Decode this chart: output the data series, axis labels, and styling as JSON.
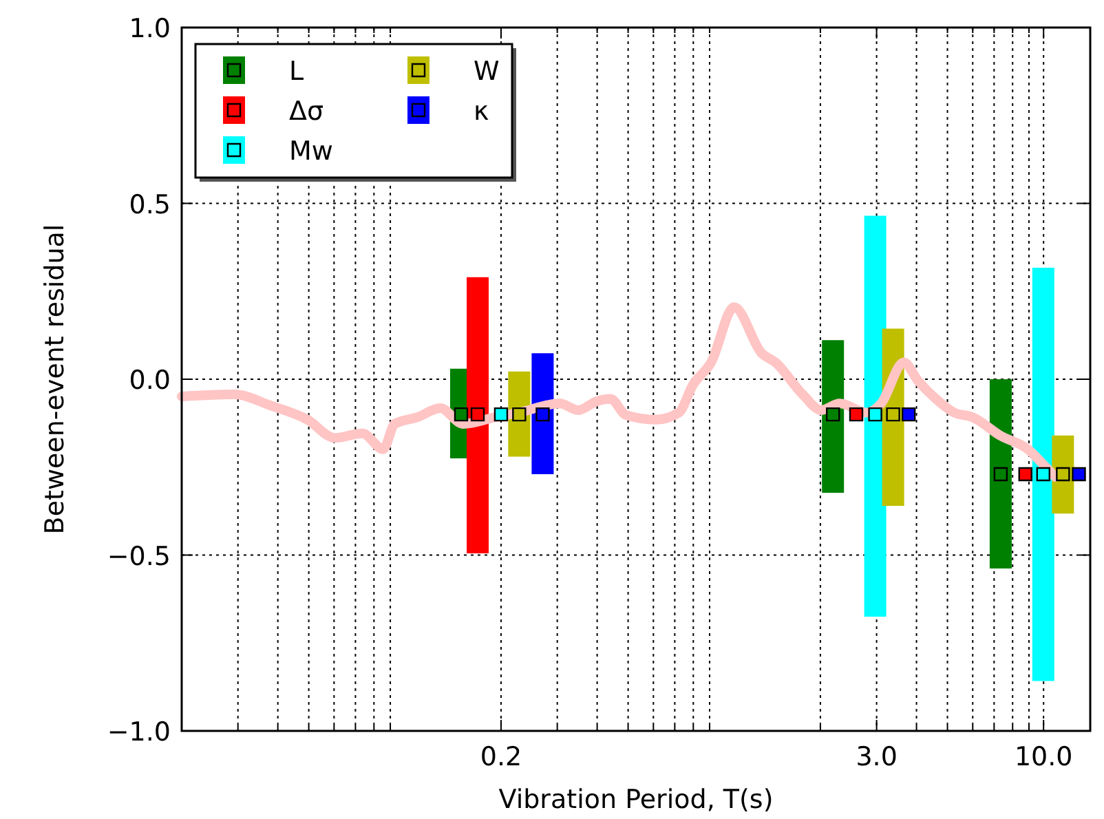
{
  "chart_data": {
    "type": "scatter",
    "xlabel": "Vibration Period, T(s)",
    "ylabel": "Between-event residual",
    "log": "x",
    "grid": true,
    "legend": "top left",
    "marker": "square",
    "xlim": [
      0.02,
      14
    ],
    "ylim": [
      -1.0,
      1.0
    ],
    "xticks": [
      {
        "value": 0.03,
        "label": null
      },
      {
        "value": 0.04,
        "label": null
      },
      {
        "value": 0.05,
        "label": null
      },
      {
        "value": 0.06,
        "label": null
      },
      {
        "value": 0.07,
        "label": null
      },
      {
        "value": 0.08,
        "label": null
      },
      {
        "value": 0.09,
        "label": null
      },
      {
        "value": 0.2,
        "label": "0.2"
      },
      {
        "value": 0.3,
        "label": null
      },
      {
        "value": 0.4,
        "label": null
      },
      {
        "value": 0.5,
        "label": null
      },
      {
        "value": 0.6,
        "label": null
      },
      {
        "value": 0.7,
        "label": null
      },
      {
        "value": 0.8,
        "label": null
      },
      {
        "value": 0.9,
        "label": null
      },
      {
        "value": 2,
        "label": null
      },
      {
        "value": 3,
        "label": "3.0"
      },
      {
        "value": 4,
        "label": null
      },
      {
        "value": 5,
        "label": null
      },
      {
        "value": 6,
        "label": null
      },
      {
        "value": 7,
        "label": null
      },
      {
        "value": 8,
        "label": null
      },
      {
        "value": 9,
        "label": null
      },
      {
        "value": 10,
        "label": "10.0"
      }
    ],
    "yticks": [
      {
        "value": -1.0,
        "label": "−1.0"
      },
      {
        "value": -0.5,
        "label": "−0.5"
      },
      {
        "value": 0.0,
        "label": "0.0"
      },
      {
        "value": 0.5,
        "label": "0.5"
      },
      {
        "value": 1.0,
        "label": "1.0"
      }
    ],
    "series": [
      {
        "type": "line",
        "marker": "none",
        "color": "#ffc4c4",
        "x": [
          0.02,
          0.0292,
          0.038,
          0.0495,
          0.0604,
          0.0736,
          0.0855,
          0.0929,
          0.1095,
          0.129,
          0.152,
          0.192,
          0.227,
          0.306,
          0.349,
          0.398,
          0.44,
          0.493,
          0.612,
          0.721,
          0.797,
          0.91,
          1.074,
          1.31,
          1.445,
          1.76,
          2.01,
          2.3,
          2.8,
          3.1,
          3.65,
          4.04,
          4.6,
          5.25,
          6.0,
          7.31,
          8.93,
          10.19,
          10.89
        ],
        "values": [
          -0.049,
          -0.043,
          -0.075,
          -0.115,
          -0.167,
          -0.154,
          -0.199,
          -0.127,
          -0.108,
          -0.082,
          -0.127,
          -0.108,
          -0.095,
          -0.069,
          -0.088,
          -0.063,
          -0.056,
          -0.102,
          -0.115,
          -0.095,
          -0.017,
          0.048,
          0.205,
          0.074,
          0.048,
          -0.043,
          -0.088,
          -0.069,
          -0.095,
          -0.069,
          0.048,
          -0.004,
          -0.056,
          -0.095,
          -0.108,
          -0.16,
          -0.199,
          -0.251,
          -0.278
        ]
      },
      {
        "name": "L",
        "color": "#008000",
        "x": [
          0.15,
          2.19,
          7.34
        ],
        "values": [
          -0.1,
          -0.1,
          -0.27
        ],
        "errors": [
          [
            -0.225,
            0.03
          ],
          [
            -0.323,
            0.111
          ],
          [
            -0.538,
            0.0
          ]
        ]
      },
      {
        "name": "Δσ",
        "color": "#ff0000",
        "x": [
          0.169,
          2.59,
          8.77
        ],
        "values": [
          -0.1,
          -0.1,
          -0.27
        ],
        "errors": [
          [
            -0.495,
            0.29
          ],
          null,
          null
        ]
      },
      {
        "name": "Mw",
        "color": "#00ffff",
        "x": [
          0.2,
          2.97,
          9.98
        ],
        "values": [
          -0.1,
          -0.1,
          -0.27
        ],
        "errors": [
          null,
          [
            -0.675,
            0.465
          ],
          [
            -0.858,
            0.317
          ]
        ]
      },
      {
        "name": "W",
        "color": "#bfbf00",
        "x": [
          0.228,
          3.38,
          11.5
        ],
        "values": [
          -0.1,
          -0.1,
          -0.27
        ],
        "errors": [
          [
            -0.22,
            0.022
          ],
          [
            -0.36,
            0.144
          ],
          [
            -0.382,
            -0.16
          ]
        ]
      },
      {
        "name": "κ",
        "color": "#0000ff",
        "x": [
          0.27,
          3.78,
          12.9
        ],
        "values": [
          -0.1,
          -0.1,
          -0.27
        ],
        "errors": [
          [
            -0.27,
            0.074
          ],
          null,
          null
        ]
      }
    ]
  }
}
